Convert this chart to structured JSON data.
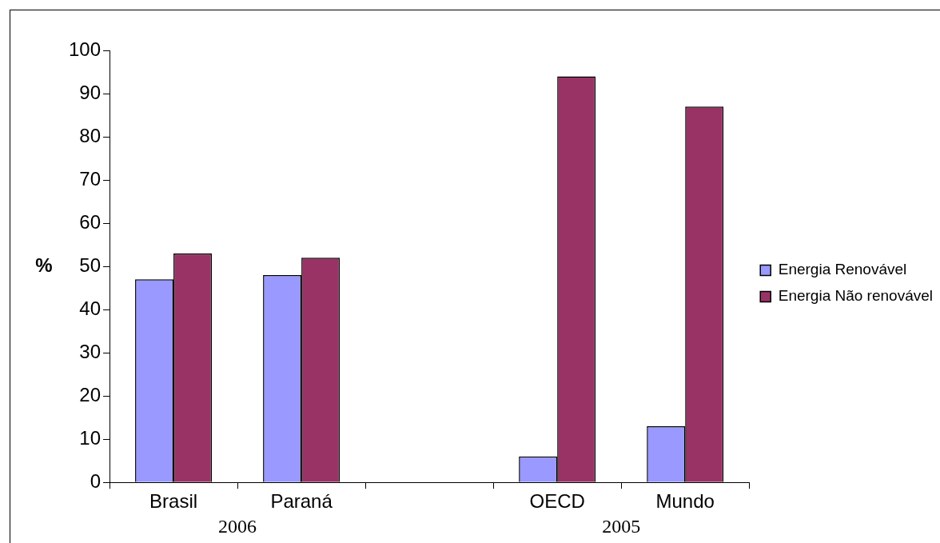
{
  "chart_data": {
    "type": "bar",
    "categories": [
      "Brasil",
      "Paraná",
      null,
      "OECD",
      "Mundo"
    ],
    "series": [
      {
        "name": "Energia Renovável",
        "color": "#9999ff",
        "values": [
          47,
          48,
          null,
          6,
          13
        ]
      },
      {
        "name": "Energia Não renovável",
        "color": "#993366",
        "values": [
          53,
          52,
          null,
          94,
          87
        ]
      }
    ],
    "ylabel": "%",
    "ylim": [
      0,
      100
    ],
    "yticks": [
      0,
      10,
      20,
      30,
      40,
      50,
      60,
      70,
      80,
      90,
      100
    ],
    "annotations": [
      "2006",
      "2005"
    ],
    "grid": false,
    "legend": "right"
  }
}
